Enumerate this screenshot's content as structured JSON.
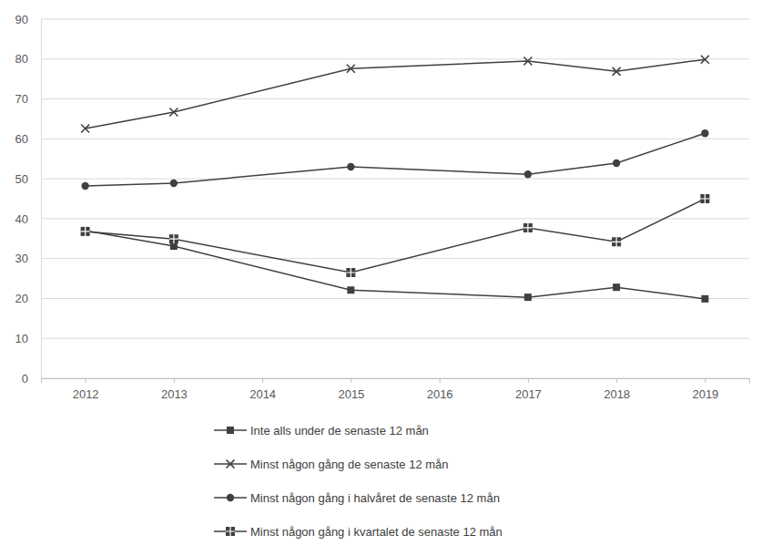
{
  "chart_data": {
    "type": "line",
    "x": [
      2012,
      2013,
      2015,
      2017,
      2018,
      2019
    ],
    "xlim": [
      2011.5,
      2019.5
    ],
    "xticks": [
      2012,
      2013,
      2014,
      2015,
      2016,
      2017,
      2018,
      2019
    ],
    "ylim": [
      0,
      90
    ],
    "yticks": [
      0,
      10,
      20,
      30,
      40,
      50,
      60,
      70,
      80,
      90
    ],
    "grid": true,
    "legend": "bottom",
    "series": [
      {
        "name": "Inte alls under de senaste 12 mån",
        "color": "#404040",
        "marker": "square",
        "values": [
          37.0,
          33.1,
          22.1,
          20.3,
          22.8,
          19.9
        ]
      },
      {
        "name": "Minst någon gång de senaste 12 mån",
        "color": "#404040",
        "marker": "x",
        "values": [
          62.6,
          66.7,
          77.6,
          79.5,
          76.9,
          79.9
        ]
      },
      {
        "name": "Minst någon gång i halvåret de senaste 12 mån",
        "color": "#404040",
        "marker": "circle",
        "values": [
          48.2,
          48.9,
          53.0,
          51.1,
          53.9,
          61.4
        ]
      },
      {
        "name": "Minst någon gång i kvartalet de senaste 12 mån",
        "color": "#404040",
        "marker": "plus-square",
        "values": [
          36.8,
          34.9,
          26.5,
          37.7,
          34.2,
          45.0
        ]
      }
    ]
  }
}
